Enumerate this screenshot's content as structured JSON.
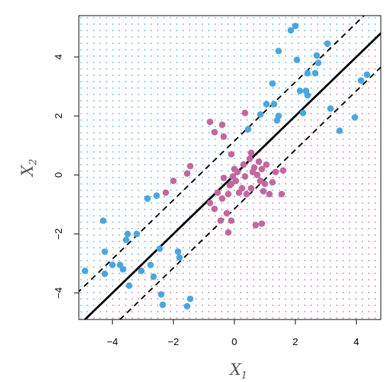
{
  "chart_data": {
    "type": "scatter",
    "title": "",
    "xlabel": "X",
    "xlabel_sub": "1",
    "ylabel": "X",
    "ylabel_sub": "2",
    "xlim": [
      -5.1,
      4.8
    ],
    "ylim": [
      -4.9,
      5.4
    ],
    "x_ticks": [
      -4,
      -2,
      0,
      2,
      4
    ],
    "y_ticks": [
      -4,
      -2,
      0,
      2,
      4
    ],
    "x_tick_labels": [
      "−4",
      "−2",
      "0",
      "2",
      "4"
    ],
    "y_tick_labels": [
      "−4",
      "−2",
      "0",
      "2",
      "4"
    ],
    "grid": false,
    "legend": "none",
    "background": "dotted class-region grid split by the decision boundary",
    "decision_boundary": {
      "slope": 1.0,
      "intercept": 0.0,
      "style": "solid"
    },
    "margins": [
      {
        "slope": 1.0,
        "intercept": 1.15,
        "style": "dashed"
      },
      {
        "slope": 1.0,
        "intercept": -1.15,
        "style": "dashed"
      }
    ],
    "colors": {
      "blue": "#4aa6e0",
      "purple": "#c2689e",
      "line": "#000000"
    },
    "series": [
      {
        "color": "blue",
        "points": [
          [
            -4.9,
            -3.25
          ],
          [
            -4.3,
            -1.55
          ],
          [
            -4.25,
            -2.6
          ],
          [
            -4.25,
            -3.35
          ],
          [
            -4.0,
            -3.05
          ],
          [
            -3.75,
            -3.05
          ],
          [
            -3.65,
            -3.2
          ],
          [
            -3.55,
            -2.2
          ],
          [
            -3.5,
            -2.0
          ],
          [
            -3.45,
            -3.75
          ],
          [
            -3.2,
            -2.0
          ],
          [
            -3.05,
            -3.25
          ],
          [
            -2.75,
            -3.05
          ],
          [
            -2.65,
            -3.45
          ],
          [
            -2.45,
            -2.5
          ],
          [
            -2.4,
            -4.05
          ],
          [
            -2.35,
            -4.4
          ],
          [
            -1.85,
            -2.6
          ],
          [
            -1.8,
            -2.8
          ],
          [
            -1.55,
            -4.45
          ],
          [
            -1.45,
            -4.2
          ],
          [
            -2.85,
            -0.8
          ],
          [
            -2.55,
            -0.7
          ],
          [
            0.45,
            1.55
          ],
          [
            0.85,
            2.05
          ],
          [
            1.05,
            2.4
          ],
          [
            1.25,
            3.1
          ],
          [
            1.3,
            2.4
          ],
          [
            1.4,
            1.85
          ],
          [
            1.45,
            2.0
          ],
          [
            1.45,
            4.2
          ],
          [
            1.85,
            4.9
          ],
          [
            2.0,
            5.05
          ],
          [
            2.05,
            3.9
          ],
          [
            2.15,
            2.85
          ],
          [
            2.25,
            2.1
          ],
          [
            2.35,
            2.85
          ],
          [
            2.4,
            3.45
          ],
          [
            2.4,
            2.7
          ],
          [
            2.65,
            3.45
          ],
          [
            2.7,
            4.05
          ],
          [
            2.75,
            3.8
          ],
          [
            3.05,
            4.45
          ],
          [
            3.15,
            2.25
          ],
          [
            3.45,
            1.5
          ],
          [
            3.95,
            1.95
          ],
          [
            4.15,
            3.2
          ],
          [
            4.35,
            3.4
          ]
        ]
      },
      {
        "color": "purple",
        "points": [
          [
            -2.25,
            -0.6
          ],
          [
            -2.0,
            -0.2
          ],
          [
            -1.45,
            0.3
          ],
          [
            -1.55,
            0.05
          ],
          [
            -0.8,
            1.8
          ],
          [
            -0.65,
            1.45
          ],
          [
            -0.4,
            1.7
          ],
          [
            -0.35,
            1.3
          ],
          [
            -0.1,
            0.7
          ],
          [
            0.35,
            2.1
          ],
          [
            -0.8,
            -0.95
          ],
          [
            -0.65,
            -1.15
          ],
          [
            -0.55,
            -0.6
          ],
          [
            -0.45,
            -1.55
          ],
          [
            -0.4,
            -0.8
          ],
          [
            -0.35,
            -0.1
          ],
          [
            -0.25,
            -1.3
          ],
          [
            -0.2,
            -0.65
          ],
          [
            -0.15,
            -0.35
          ],
          [
            -0.1,
            -0.3
          ],
          [
            -0.1,
            -1.55
          ],
          [
            -0.05,
            -0.05
          ],
          [
            0.0,
            0.2
          ],
          [
            0.05,
            -0.2
          ],
          [
            0.1,
            0.1
          ],
          [
            0.15,
            -0.6
          ],
          [
            0.25,
            -0.45
          ],
          [
            0.3,
            0.35
          ],
          [
            0.35,
            -0.05
          ],
          [
            0.4,
            -0.65
          ],
          [
            0.5,
            0.55
          ],
          [
            0.55,
            0.75
          ],
          [
            0.55,
            -0.45
          ],
          [
            0.6,
            0.1
          ],
          [
            0.65,
            0.25
          ],
          [
            0.75,
            0.0
          ],
          [
            0.8,
            0.45
          ],
          [
            0.85,
            -0.2
          ],
          [
            0.9,
            0.2
          ],
          [
            0.95,
            -0.55
          ],
          [
            1.0,
            -0.3
          ],
          [
            1.05,
            0.35
          ],
          [
            1.15,
            -0.65
          ],
          [
            1.25,
            -0.25
          ],
          [
            1.35,
            0.1
          ],
          [
            1.55,
            -0.65
          ],
          [
            1.6,
            0.15
          ],
          [
            0.7,
            -1.7
          ],
          [
            0.9,
            -1.65
          ],
          [
            -0.2,
            -1.95
          ]
        ]
      }
    ]
  }
}
